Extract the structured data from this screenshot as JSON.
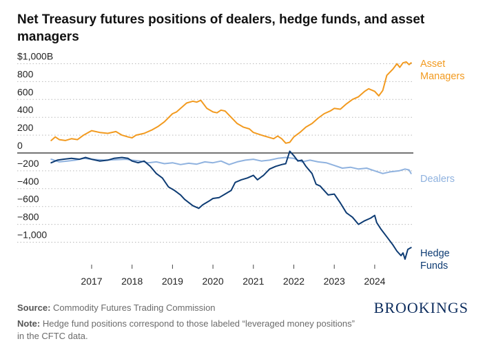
{
  "title": "Net Treasury futures positions of dealers, hedge funds, and asset managers",
  "source_label": "Source:",
  "source_text": " Commodity Futures Trading Commission",
  "note_label": "Note:",
  "note_text": " Hedge fund positions correspond to those labeled “leveraged money positions” in the CFTC data.",
  "brand": "BROOKINGS",
  "chart_data": {
    "type": "line",
    "xlim": [
      2016.0,
      2025.0
    ],
    "ylim": [
      -1200,
      1000
    ],
    "grid": true,
    "y_ticks": [
      {
        "value": 1000,
        "label": "$1,000B"
      },
      {
        "value": 800,
        "label": "800"
      },
      {
        "value": 600,
        "label": "600"
      },
      {
        "value": 400,
        "label": "400"
      },
      {
        "value": 200,
        "label": "200"
      },
      {
        "value": 0,
        "label": "0"
      },
      {
        "value": -200,
        "label": "−200"
      },
      {
        "value": -400,
        "label": "−400"
      },
      {
        "value": -600,
        "label": "−600"
      },
      {
        "value": -800,
        "label": "−800"
      },
      {
        "value": -1000,
        "label": "−1,000"
      }
    ],
    "x_ticks": [
      {
        "value": 2017,
        "label": "2017"
      },
      {
        "value": 2018,
        "label": "2018"
      },
      {
        "value": 2019,
        "label": "2019"
      },
      {
        "value": 2020,
        "label": "2020"
      },
      {
        "value": 2021,
        "label": "2021"
      },
      {
        "value": 2022,
        "label": "2022"
      },
      {
        "value": 2023,
        "label": "2023"
      },
      {
        "value": 2024,
        "label": "2024"
      }
    ],
    "series": [
      {
        "name": "Asset Managers",
        "label_lines": [
          "Asset",
          "Managers"
        ],
        "color": "#f29a1f",
        "points": [
          [
            2016.0,
            140
          ],
          [
            2016.1,
            180
          ],
          [
            2016.2,
            150
          ],
          [
            2016.35,
            140
          ],
          [
            2016.5,
            160
          ],
          [
            2016.65,
            150
          ],
          [
            2016.8,
            200
          ],
          [
            2017.0,
            250
          ],
          [
            2017.2,
            230
          ],
          [
            2017.4,
            220
          ],
          [
            2017.6,
            240
          ],
          [
            2017.75,
            200
          ],
          [
            2017.9,
            180
          ],
          [
            2018.0,
            170
          ],
          [
            2018.1,
            200
          ],
          [
            2018.3,
            220
          ],
          [
            2018.5,
            260
          ],
          [
            2018.65,
            300
          ],
          [
            2018.8,
            350
          ],
          [
            2019.0,
            440
          ],
          [
            2019.1,
            460
          ],
          [
            2019.2,
            500
          ],
          [
            2019.35,
            560
          ],
          [
            2019.5,
            580
          ],
          [
            2019.6,
            570
          ],
          [
            2019.7,
            590
          ],
          [
            2019.85,
            500
          ],
          [
            2020.0,
            460
          ],
          [
            2020.1,
            450
          ],
          [
            2020.2,
            480
          ],
          [
            2020.3,
            470
          ],
          [
            2020.45,
            400
          ],
          [
            2020.6,
            330
          ],
          [
            2020.75,
            290
          ],
          [
            2020.9,
            270
          ],
          [
            2021.0,
            230
          ],
          [
            2021.2,
            200
          ],
          [
            2021.35,
            180
          ],
          [
            2021.5,
            160
          ],
          [
            2021.6,
            190
          ],
          [
            2021.7,
            160
          ],
          [
            2021.8,
            110
          ],
          [
            2021.9,
            120
          ],
          [
            2022.0,
            180
          ],
          [
            2022.15,
            230
          ],
          [
            2022.3,
            290
          ],
          [
            2022.45,
            330
          ],
          [
            2022.6,
            390
          ],
          [
            2022.75,
            440
          ],
          [
            2022.9,
            470
          ],
          [
            2023.0,
            500
          ],
          [
            2023.15,
            490
          ],
          [
            2023.3,
            550
          ],
          [
            2023.45,
            600
          ],
          [
            2023.6,
            630
          ],
          [
            2023.75,
            690
          ],
          [
            2023.85,
            720
          ],
          [
            2024.0,
            690
          ],
          [
            2024.1,
            640
          ],
          [
            2024.2,
            700
          ],
          [
            2024.3,
            870
          ],
          [
            2024.45,
            940
          ],
          [
            2024.55,
            1000
          ],
          [
            2024.62,
            960
          ],
          [
            2024.7,
            1010
          ],
          [
            2024.78,
            1020
          ],
          [
            2024.85,
            990
          ],
          [
            2024.9,
            1010
          ]
        ]
      },
      {
        "name": "Dealers",
        "label_lines": [
          "Dealers"
        ],
        "color": "#8fb2df",
        "points": [
          [
            2016.0,
            -70
          ],
          [
            2016.2,
            -100
          ],
          [
            2016.4,
            -90
          ],
          [
            2016.6,
            -80
          ],
          [
            2016.8,
            -60
          ],
          [
            2017.0,
            -70
          ],
          [
            2017.3,
            -80
          ],
          [
            2017.6,
            -75
          ],
          [
            2017.85,
            -70
          ],
          [
            2018.0,
            -80
          ],
          [
            2018.2,
            -90
          ],
          [
            2018.4,
            -110
          ],
          [
            2018.6,
            -100
          ],
          [
            2018.8,
            -120
          ],
          [
            2019.0,
            -110
          ],
          [
            2019.2,
            -130
          ],
          [
            2019.4,
            -115
          ],
          [
            2019.6,
            -125
          ],
          [
            2019.8,
            -100
          ],
          [
            2020.0,
            -110
          ],
          [
            2020.2,
            -90
          ],
          [
            2020.4,
            -130
          ],
          [
            2020.6,
            -100
          ],
          [
            2020.8,
            -80
          ],
          [
            2021.0,
            -70
          ],
          [
            2021.2,
            -90
          ],
          [
            2021.4,
            -80
          ],
          [
            2021.6,
            -60
          ],
          [
            2021.8,
            -50
          ],
          [
            2022.0,
            -60
          ],
          [
            2022.2,
            -100
          ],
          [
            2022.4,
            -80
          ],
          [
            2022.6,
            -100
          ],
          [
            2022.8,
            -110
          ],
          [
            2023.0,
            -140
          ],
          [
            2023.2,
            -170
          ],
          [
            2023.4,
            -160
          ],
          [
            2023.6,
            -180
          ],
          [
            2023.8,
            -170
          ],
          [
            2024.0,
            -200
          ],
          [
            2024.2,
            -230
          ],
          [
            2024.4,
            -210
          ],
          [
            2024.6,
            -200
          ],
          [
            2024.75,
            -180
          ],
          [
            2024.85,
            -190
          ],
          [
            2024.9,
            -230
          ]
        ]
      },
      {
        "name": "Hedge Funds",
        "label_lines": [
          "Hedge",
          "Funds"
        ],
        "color": "#0d3b73",
        "points": [
          [
            2016.0,
            -110
          ],
          [
            2016.15,
            -80
          ],
          [
            2016.3,
            -70
          ],
          [
            2016.5,
            -60
          ],
          [
            2016.7,
            -70
          ],
          [
            2016.85,
            -50
          ],
          [
            2017.0,
            -70
          ],
          [
            2017.2,
            -90
          ],
          [
            2017.4,
            -80
          ],
          [
            2017.55,
            -60
          ],
          [
            2017.75,
            -50
          ],
          [
            2017.9,
            -60
          ],
          [
            2018.0,
            -90
          ],
          [
            2018.15,
            -110
          ],
          [
            2018.3,
            -90
          ],
          [
            2018.45,
            -150
          ],
          [
            2018.6,
            -230
          ],
          [
            2018.75,
            -280
          ],
          [
            2018.9,
            -380
          ],
          [
            2019.05,
            -420
          ],
          [
            2019.2,
            -470
          ],
          [
            2019.3,
            -520
          ],
          [
            2019.5,
            -590
          ],
          [
            2019.65,
            -620
          ],
          [
            2019.75,
            -580
          ],
          [
            2019.9,
            -540
          ],
          [
            2020.0,
            -510
          ],
          [
            2020.15,
            -500
          ],
          [
            2020.3,
            -460
          ],
          [
            2020.45,
            -420
          ],
          [
            2020.55,
            -330
          ],
          [
            2020.7,
            -300
          ],
          [
            2020.85,
            -280
          ],
          [
            2021.0,
            -250
          ],
          [
            2021.1,
            -300
          ],
          [
            2021.25,
            -250
          ],
          [
            2021.4,
            -180
          ],
          [
            2021.55,
            -150
          ],
          [
            2021.7,
            -130
          ],
          [
            2021.8,
            -120
          ],
          [
            2021.9,
            20
          ],
          [
            2022.0,
            -30
          ],
          [
            2022.1,
            -90
          ],
          [
            2022.2,
            -80
          ],
          [
            2022.3,
            -150
          ],
          [
            2022.45,
            -230
          ],
          [
            2022.55,
            -350
          ],
          [
            2022.65,
            -370
          ],
          [
            2022.75,
            -420
          ],
          [
            2022.85,
            -470
          ],
          [
            2023.0,
            -460
          ],
          [
            2023.15,
            -560
          ],
          [
            2023.3,
            -670
          ],
          [
            2023.45,
            -720
          ],
          [
            2023.6,
            -800
          ],
          [
            2023.75,
            -760
          ],
          [
            2023.9,
            -730
          ],
          [
            2024.0,
            -700
          ],
          [
            2024.05,
            -780
          ],
          [
            2024.15,
            -850
          ],
          [
            2024.3,
            -940
          ],
          [
            2024.45,
            -1030
          ],
          [
            2024.55,
            -1100
          ],
          [
            2024.65,
            -1150
          ],
          [
            2024.7,
            -1120
          ],
          [
            2024.75,
            -1190
          ],
          [
            2024.82,
            -1080
          ],
          [
            2024.9,
            -1060
          ]
        ]
      }
    ]
  }
}
